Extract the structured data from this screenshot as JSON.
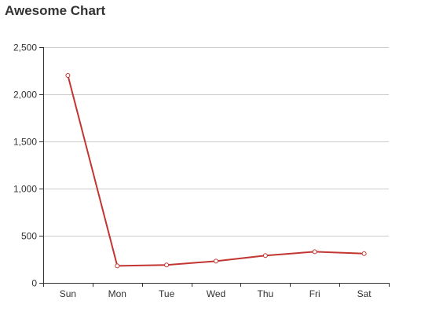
{
  "chart_data": {
    "type": "line",
    "title": "Awesome Chart",
    "categories": [
      "Sun",
      "Mon",
      "Tue",
      "Wed",
      "Thu",
      "Fri",
      "Sat"
    ],
    "series": [
      {
        "values": [
          2200,
          180,
          190,
          230,
          290,
          330,
          310
        ],
        "color": "#c23531"
      }
    ],
    "ylim": [
      0,
      2500
    ],
    "yticks": [
      "0",
      "500",
      "1,000",
      "1,500",
      "2,000",
      "2,500"
    ],
    "grid": true,
    "colors": {
      "line": "#c23531",
      "grid": "#cccccc",
      "axis": "#333333",
      "text": "#333333"
    }
  }
}
